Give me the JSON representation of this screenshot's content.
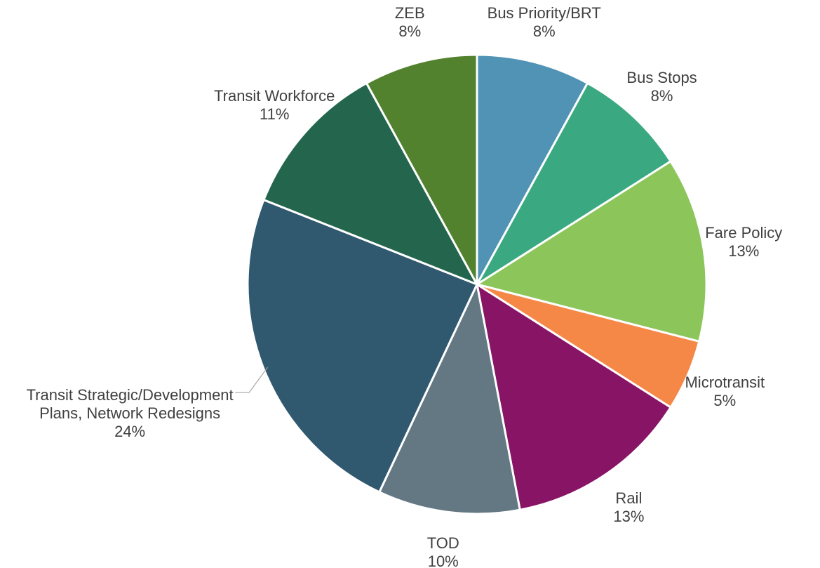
{
  "chart_data": {
    "type": "pie",
    "categories": [
      "Bus Priority/BRT",
      "Bus Stops",
      "Fare Policy",
      "Microtransit",
      "Rail",
      "TOD",
      "Transit Strategic/Development Plans, Network Redesigns",
      "Transit Workforce",
      "ZEB"
    ],
    "values": [
      8,
      8,
      13,
      5,
      13,
      10,
      24,
      11,
      8
    ],
    "value_labels": [
      "8%",
      "8%",
      "13%",
      "5%",
      "13%",
      "10%",
      "24%",
      "11%",
      "8%"
    ],
    "colors": [
      "#5193b5",
      "#3aa981",
      "#8cc65a",
      "#f58847",
      "#881466",
      "#647883",
      "#30586e",
      "#23664d",
      "#52822e"
    ]
  }
}
